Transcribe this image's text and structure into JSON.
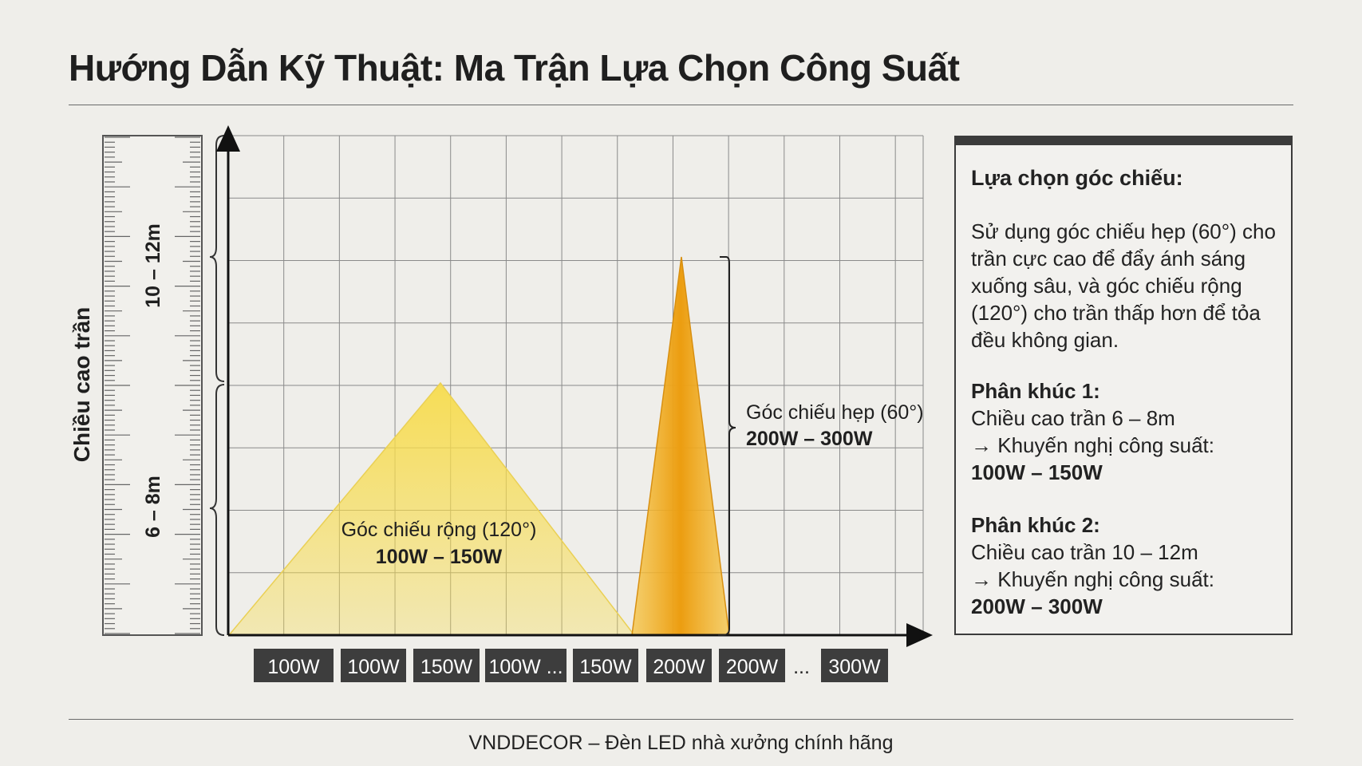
{
  "title": "Hướng Dẫn Kỹ Thuật: Ma Trận Lựa Chọn Công Suất",
  "y_axis_label": "Chiều cao trần",
  "height_ranges": [
    "6 – 8m",
    "10 – 12m"
  ],
  "wide_beam": {
    "label": "Góc chiếu rộng (120°)",
    "power": "100W – 150W"
  },
  "narrow_beam": {
    "label": "Góc chiếu hẹp (60°)",
    "power": "200W – 300W"
  },
  "x_ticks": [
    "100W",
    "100W",
    "150W",
    "100W ...",
    "150W",
    "200W",
    "200W",
    "...",
    "300W"
  ],
  "info_panel": {
    "heading": "Lựa chọn góc chiếu:",
    "description": "Sử dụng góc chiếu hẹp (60°) cho trần cực cao để đẩy ánh sáng xuống sâu, và góc chiếu rộng (120°) cho trần thấp hơn để tỏa đều không gian.",
    "segments": [
      {
        "title": "Phân khúc 1:",
        "height": "Chiều cao trần 6 – 8m",
        "recommend": "→ Khuyến nghị công suất:",
        "power": "100W – 150W"
      },
      {
        "title": "Phân khúc 2:",
        "height": "Chiều cao trần 10 – 12m",
        "recommend": "→ Khuyến nghị công suất:",
        "power": "200W – 300W"
      }
    ]
  },
  "footer": "VNDDECOR – Đèn LED nhà xưởng chính hãng",
  "colors": {
    "background": "#efeeea",
    "wide_beam": "#f5d84a",
    "narrow_beam": "#f0a81c",
    "tick_box": "#3d3d3d",
    "text": "#1f1f1f"
  }
}
